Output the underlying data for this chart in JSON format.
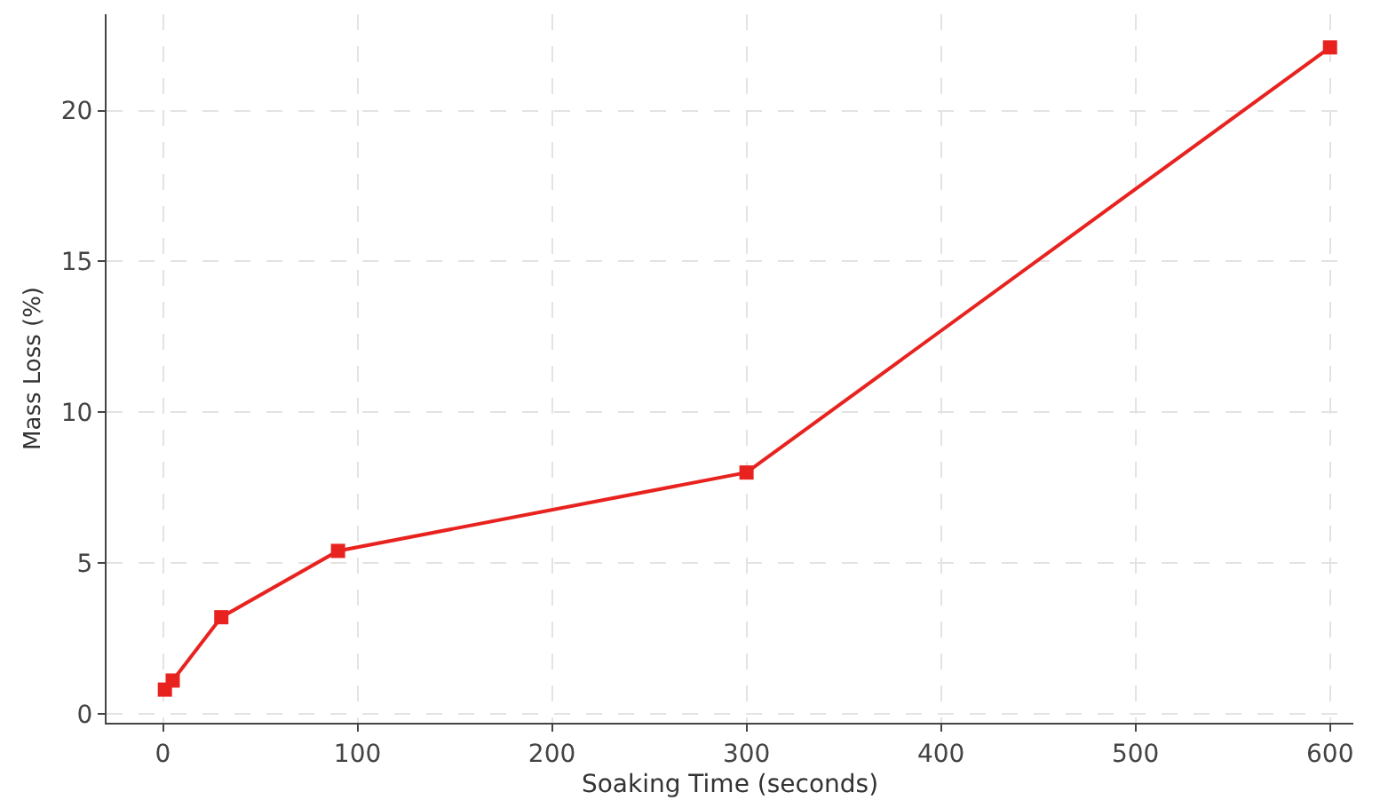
{
  "chart_data": {
    "type": "line",
    "xlabel": "Soaking Time (seconds)",
    "ylabel": "Mass Loss (%)",
    "x": [
      1,
      5,
      30,
      90,
      300,
      600
    ],
    "series": [
      {
        "color": "#e8231f",
        "values": [
          0.8,
          1.1,
          3.2,
          5.4,
          8.0,
          22.1
        ]
      }
    ],
    "xlim": [
      -29,
      612
    ],
    "ylim": [
      -0.3,
      23.2
    ],
    "xticks": [
      0,
      100,
      200,
      300,
      400,
      500,
      600
    ],
    "yticks": [
      0,
      5,
      10,
      15,
      20
    ],
    "grid": true,
    "marker": "square",
    "line_style": "solid",
    "legend": false
  }
}
